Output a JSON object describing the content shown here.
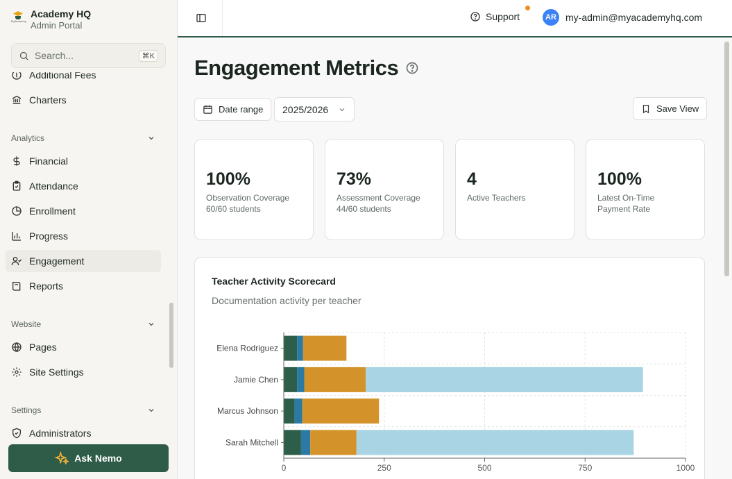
{
  "brand": {
    "title": "Academy HQ",
    "subtitle": "Admin Portal",
    "logo_text": "MyAcademy"
  },
  "search": {
    "placeholder": "Search...",
    "shortcut": "⌘K"
  },
  "sidebar": {
    "top_items": [
      {
        "label": "Additional Fees",
        "icon": "circle-dollar-icon"
      },
      {
        "label": "Charters",
        "icon": "bank-icon"
      }
    ],
    "groups": [
      {
        "label": "Analytics",
        "items": [
          {
            "label": "Financial",
            "icon": "dollar-icon"
          },
          {
            "label": "Attendance",
            "icon": "clipboard-check-icon"
          },
          {
            "label": "Enrollment",
            "icon": "pie-chart-icon"
          },
          {
            "label": "Progress",
            "icon": "bar-chart-icon"
          },
          {
            "label": "Engagement",
            "icon": "user-check-icon",
            "active": true
          },
          {
            "label": "Reports",
            "icon": "book-icon"
          }
        ]
      },
      {
        "label": "Website",
        "items": [
          {
            "label": "Pages",
            "icon": "globe-icon"
          },
          {
            "label": "Site Settings",
            "icon": "gear-icon"
          }
        ]
      },
      {
        "label": "Settings",
        "items": [
          {
            "label": "Administrators",
            "icon": "shield-check-icon"
          }
        ]
      }
    ],
    "ask_button": "Ask Nemo"
  },
  "header": {
    "support_label": "Support",
    "avatar_initials": "AR",
    "user_email": "my-admin@myacademyhq.com"
  },
  "page": {
    "title": "Engagement Metrics",
    "date_range_label": "Date range",
    "year_select": "2025/2026",
    "save_view_label": "Save View"
  },
  "kpis": [
    {
      "value": "100%",
      "label": "Observation Coverage",
      "sub": "60/60 students"
    },
    {
      "value": "73%",
      "label": "Assessment Coverage",
      "sub": "44/60 students"
    },
    {
      "value": "4",
      "label": "Active Teachers",
      "sub": ""
    },
    {
      "value": "100%",
      "label": "Latest On-Time",
      "sub": "Payment Rate"
    }
  ],
  "scorecard": {
    "title": "Teacher Activity Scorecard",
    "subtitle": "Documentation activity per teacher"
  },
  "colors": {
    "accent": "#2f5c48",
    "seg1": "#2c5e49",
    "seg2": "#2b7aa6",
    "seg3": "#d4932a",
    "seg4": "#a8d4e4"
  },
  "chart_data": {
    "type": "bar",
    "orientation": "horizontal",
    "stacked": true,
    "categories": [
      "Elena Rodriguez",
      "Jamie Chen",
      "Marcus Johnson",
      "Sarah Mitchell"
    ],
    "series": [
      {
        "values": [
          33,
          33,
          27,
          43
        ]
      },
      {
        "values": [
          15,
          18,
          19,
          23
        ]
      },
      {
        "values": [
          108,
          153,
          191,
          115
        ]
      },
      {
        "values": [
          0,
          690,
          0,
          690
        ]
      }
    ],
    "xlim": [
      0,
      1000
    ],
    "xticks": [
      0,
      250,
      500,
      750,
      1000
    ],
    "grid": true
  }
}
